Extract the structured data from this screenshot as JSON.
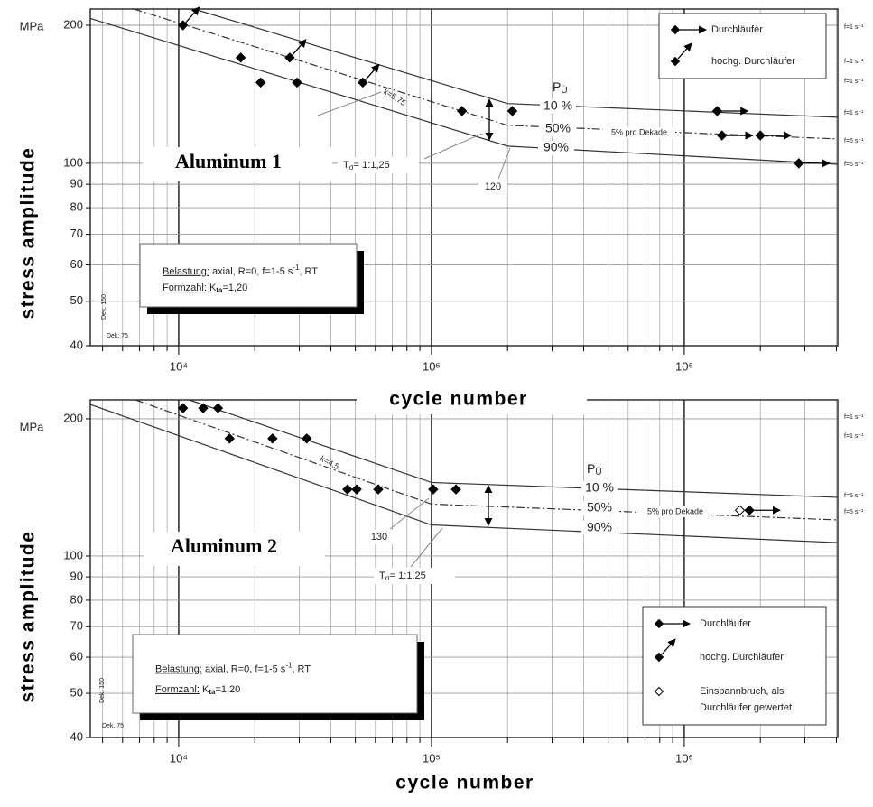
{
  "chart_data": [
    {
      "type": "line",
      "title": "Aluminum 1",
      "y_label": "stress amplitude",
      "x_label": "cycle number",
      "unit": "MPa",
      "log_x": true,
      "log_y": true,
      "grid": true,
      "xlim": [
        4470,
        4050000
      ],
      "ylim": [
        40,
        217
      ],
      "xticks": [
        {
          "value": 10000,
          "label": "10⁴"
        },
        {
          "value": 100000,
          "label": "10⁵"
        },
        {
          "value": 1000000,
          "label": "10⁶"
        }
      ],
      "xgrid": [
        5000,
        6000,
        7000,
        8000,
        9000,
        20000,
        30000,
        40000,
        50000,
        60000,
        70000,
        80000,
        90000,
        200000,
        300000,
        400000,
        500000,
        600000,
        700000,
        800000,
        900000,
        2000000,
        3000000,
        4000000
      ],
      "yticks": [
        40,
        50,
        60,
        70,
        80,
        90,
        100,
        200
      ],
      "series": [
        {
          "name": "10 %",
          "color": "#333333",
          "dash": "solid",
          "x": [
            11500,
            200000,
            4050000
          ],
          "y": [
            217,
            135,
            126
          ]
        },
        {
          "name": "50%",
          "color": "#333333",
          "dash": "dashdot",
          "x": [
            6650,
            200000,
            4050000
          ],
          "y": [
            217,
            121,
            113
          ]
        },
        {
          "name": "90%",
          "color": "#333333",
          "dash": "solid",
          "x": [
            4470,
            200000,
            4050000
          ],
          "y": [
            207,
            109,
            99.5
          ]
        }
      ],
      "point_color": "#000000",
      "points": [
        {
          "x": 10400,
          "y": 200,
          "arrow": "up"
        },
        {
          "x": 17600,
          "y": 170
        },
        {
          "x": 21100,
          "y": 150
        },
        {
          "x": 27500,
          "y": 170,
          "arrow": "up"
        },
        {
          "x": 29400,
          "y": 150
        },
        {
          "x": 53500,
          "y": 150,
          "arrow": "up"
        },
        {
          "x": 132000,
          "y": 130
        },
        {
          "x": 209000,
          "y": 130
        },
        {
          "x": 1350000,
          "y": 130,
          "arrow": "right"
        },
        {
          "x": 1410000,
          "y": 115,
          "arrow": "right"
        },
        {
          "x": 2000000,
          "y": 115,
          "arrow": "right"
        },
        {
          "x": 2840000,
          "y": 100,
          "arrow": "right"
        }
      ],
      "legend": {
        "position": "top-right",
        "entries": [
          {
            "label": "Durchläufer",
            "arrow": "right"
          },
          {
            "label": "hochg. Durchläufer",
            "arrow": "up"
          }
        ]
      },
      "probability": {
        "main": "P",
        "sub": "Ü"
      },
      "slope": "k=5,75",
      "per_decade": "5% pro Dekade",
      "knee_label": "120",
      "scatter": {
        "main": "T",
        "sub": "σ",
        "rest": "= 1:1,25"
      },
      "info": {
        "load_label": "Belastung:",
        "load": " axial, R=0, f=1-5 s",
        "load_exp": "-1",
        "load_end": ", RT",
        "notch_label": "Formzahl:",
        "notch": " K",
        "notch_sub": "ta",
        "notch_end": "=1,20"
      },
      "dek": [
        "Dek. 150",
        "Dek. 75"
      ],
      "freq_labels": [
        "f=1 s⁻¹",
        "f=1 s⁻¹",
        "f=1 s⁻¹",
        "f=1 s⁻¹",
        "f=5 s⁻¹",
        "f=5 s⁻¹"
      ]
    },
    {
      "type": "line",
      "title": "Aluminum 2",
      "y_label": "stress amplitude",
      "x_label": "cycle number",
      "unit": "MPa",
      "log_x": true,
      "log_y": true,
      "grid": true,
      "xlim": [
        4470,
        4050000
      ],
      "ylim": [
        40,
        220
      ],
      "xticks": [
        {
          "value": 10000,
          "label": "10⁴"
        },
        {
          "value": 100000,
          "label": "10⁵"
        },
        {
          "value": 1000000,
          "label": "10⁶"
        }
      ],
      "xgrid": [
        5000,
        6000,
        7000,
        8000,
        9000,
        20000,
        30000,
        40000,
        50000,
        60000,
        70000,
        80000,
        90000,
        200000,
        300000,
        400000,
        500000,
        600000,
        700000,
        800000,
        900000,
        2000000,
        3000000,
        4000000
      ],
      "yticks": [
        40,
        50,
        60,
        70,
        80,
        90,
        100,
        200
      ],
      "series": [
        {
          "name": "10 %",
          "color": "#333333",
          "dash": "solid",
          "x": [
            11000,
            100000,
            4050000
          ],
          "y": [
            220,
            145,
            134.5
          ]
        },
        {
          "name": "50%",
          "color": "#333333",
          "dash": "dashdot",
          "x": [
            6740,
            100000,
            4050000
          ],
          "y": [
            220,
            130,
            120
          ]
        },
        {
          "name": "90%",
          "color": "#333333",
          "dash": "solid",
          "x": [
            4470,
            100000,
            4050000
          ],
          "y": [
            215,
            117,
            107
          ]
        }
      ],
      "point_color": "#000000",
      "points": [
        {
          "x": 10400,
          "y": 211
        },
        {
          "x": 12500,
          "y": 211
        },
        {
          "x": 14300,
          "y": 211
        },
        {
          "x": 15900,
          "y": 181
        },
        {
          "x": 23500,
          "y": 181
        },
        {
          "x": 32100,
          "y": 181
        },
        {
          "x": 46500,
          "y": 140
        },
        {
          "x": 50600,
          "y": 140
        },
        {
          "x": 61600,
          "y": 140
        },
        {
          "x": 101600,
          "y": 140
        },
        {
          "x": 125000,
          "y": 140
        },
        {
          "x": 1660000,
          "y": 126,
          "fill": "#ffffff"
        },
        {
          "x": 1810000,
          "y": 126,
          "arrow": "right"
        }
      ],
      "legend": {
        "position": "bottom-right",
        "entries": [
          {
            "label": "Durchläufer",
            "arrow": "right"
          },
          {
            "label": "hochg. Durchläufer",
            "arrow": "up"
          },
          {
            "label": [
              "Einspannbruch, als",
              "Durchläufer gewertet"
            ],
            "fill": "#ffffff"
          }
        ]
      },
      "probability": {
        "main": "P",
        "sub": "Ü"
      },
      "slope": "k=4,5",
      "per_decade": "5% pro Dekade",
      "knee_label": "130",
      "scatter": {
        "main": "T",
        "sub": "σ",
        "rest": "= 1:1.25"
      },
      "info": {
        "load_label": "Belastung:",
        "load": " axial, R=0, f=1-5 s",
        "load_exp": "-1",
        "load_end": ", RT",
        "notch_label": "Formzahl:",
        "notch": " K",
        "notch_sub": "ta",
        "notch_end": "=1,20"
      },
      "dek": [
        "Dek. 150",
        "Dek. 75"
      ],
      "freq_labels": [
        "f=1 s⁻¹",
        "f=1 s⁻¹",
        "f=5 s⁻¹",
        "f=5 s⁻¹"
      ]
    }
  ]
}
